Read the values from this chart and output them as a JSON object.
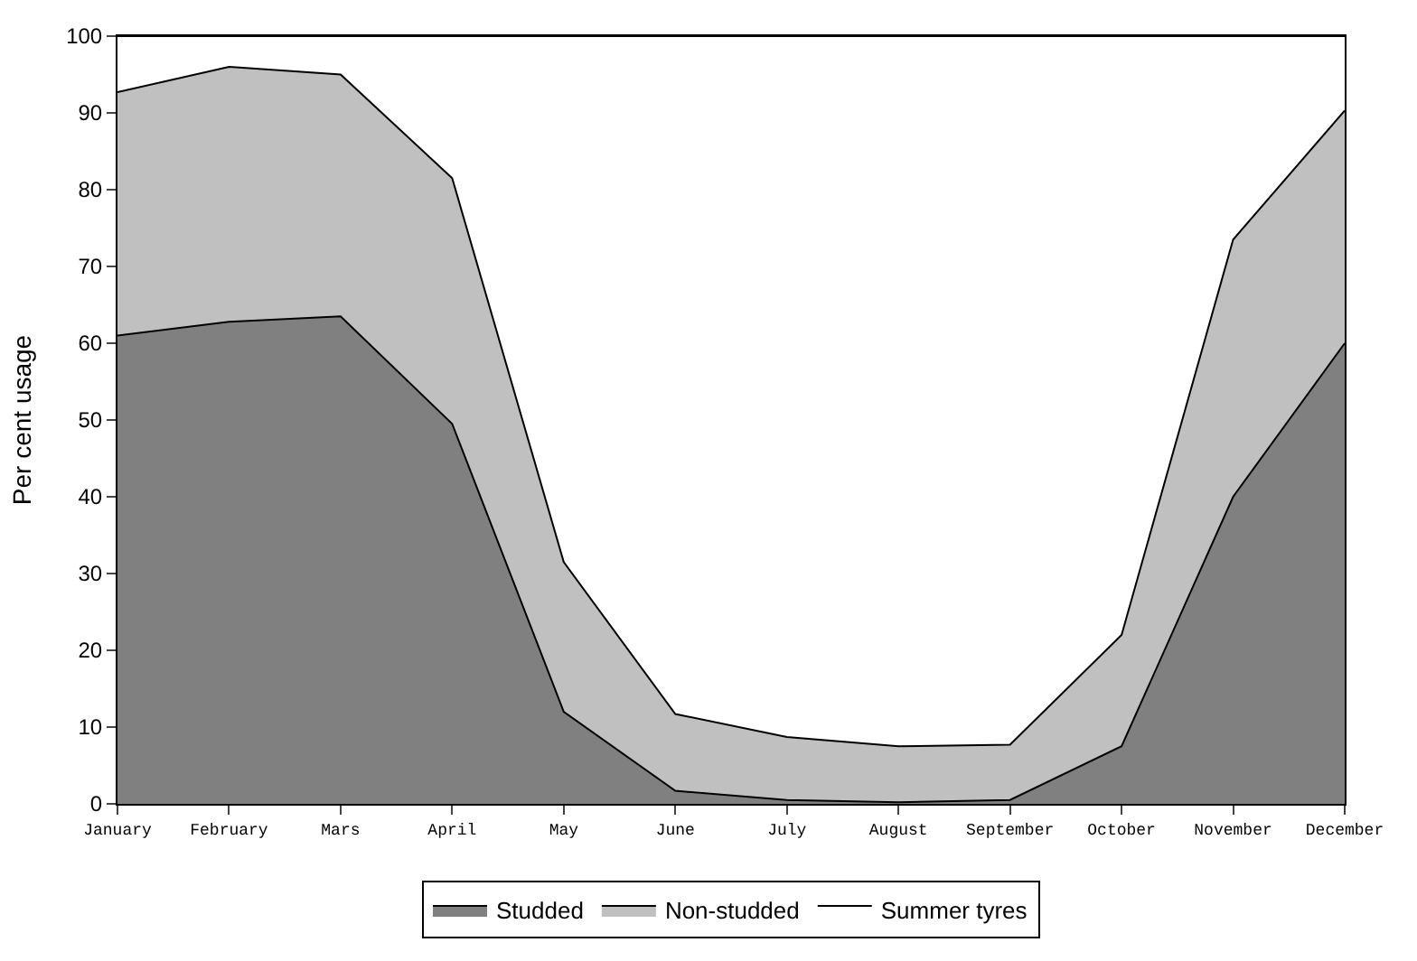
{
  "chart_data": {
    "type": "area",
    "stacked": true,
    "ylabel": "Per cent usage",
    "categories": [
      "January",
      "February",
      "Mars",
      "April",
      "May",
      "June",
      "July",
      "August",
      "September",
      "October",
      "November",
      "December"
    ],
    "series": [
      {
        "name": "Studded",
        "color": "#808080",
        "values": [
          61,
          62.8,
          63.5,
          49.5,
          12,
          1.7,
          0.5,
          0.2,
          0.5,
          7.5,
          40,
          60
        ]
      },
      {
        "name": "Non-studded",
        "color": "#c0c0c0",
        "values": [
          31.7,
          33.2,
          31.5,
          32,
          19.5,
          10,
          8.2,
          7.3,
          7.2,
          14.5,
          33.5,
          30.3
        ]
      },
      {
        "name": "Summer tyres",
        "color": "#ffffff",
        "values": [
          7.3,
          4,
          5,
          18.5,
          68.5,
          88.3,
          91.3,
          92.5,
          92.3,
          78,
          26.5,
          9.7
        ]
      }
    ],
    "ylim": [
      0,
      100
    ],
    "yticks": [
      0,
      10,
      20,
      30,
      40,
      50,
      60,
      70,
      80,
      90,
      100
    ],
    "legend": "bottom"
  }
}
